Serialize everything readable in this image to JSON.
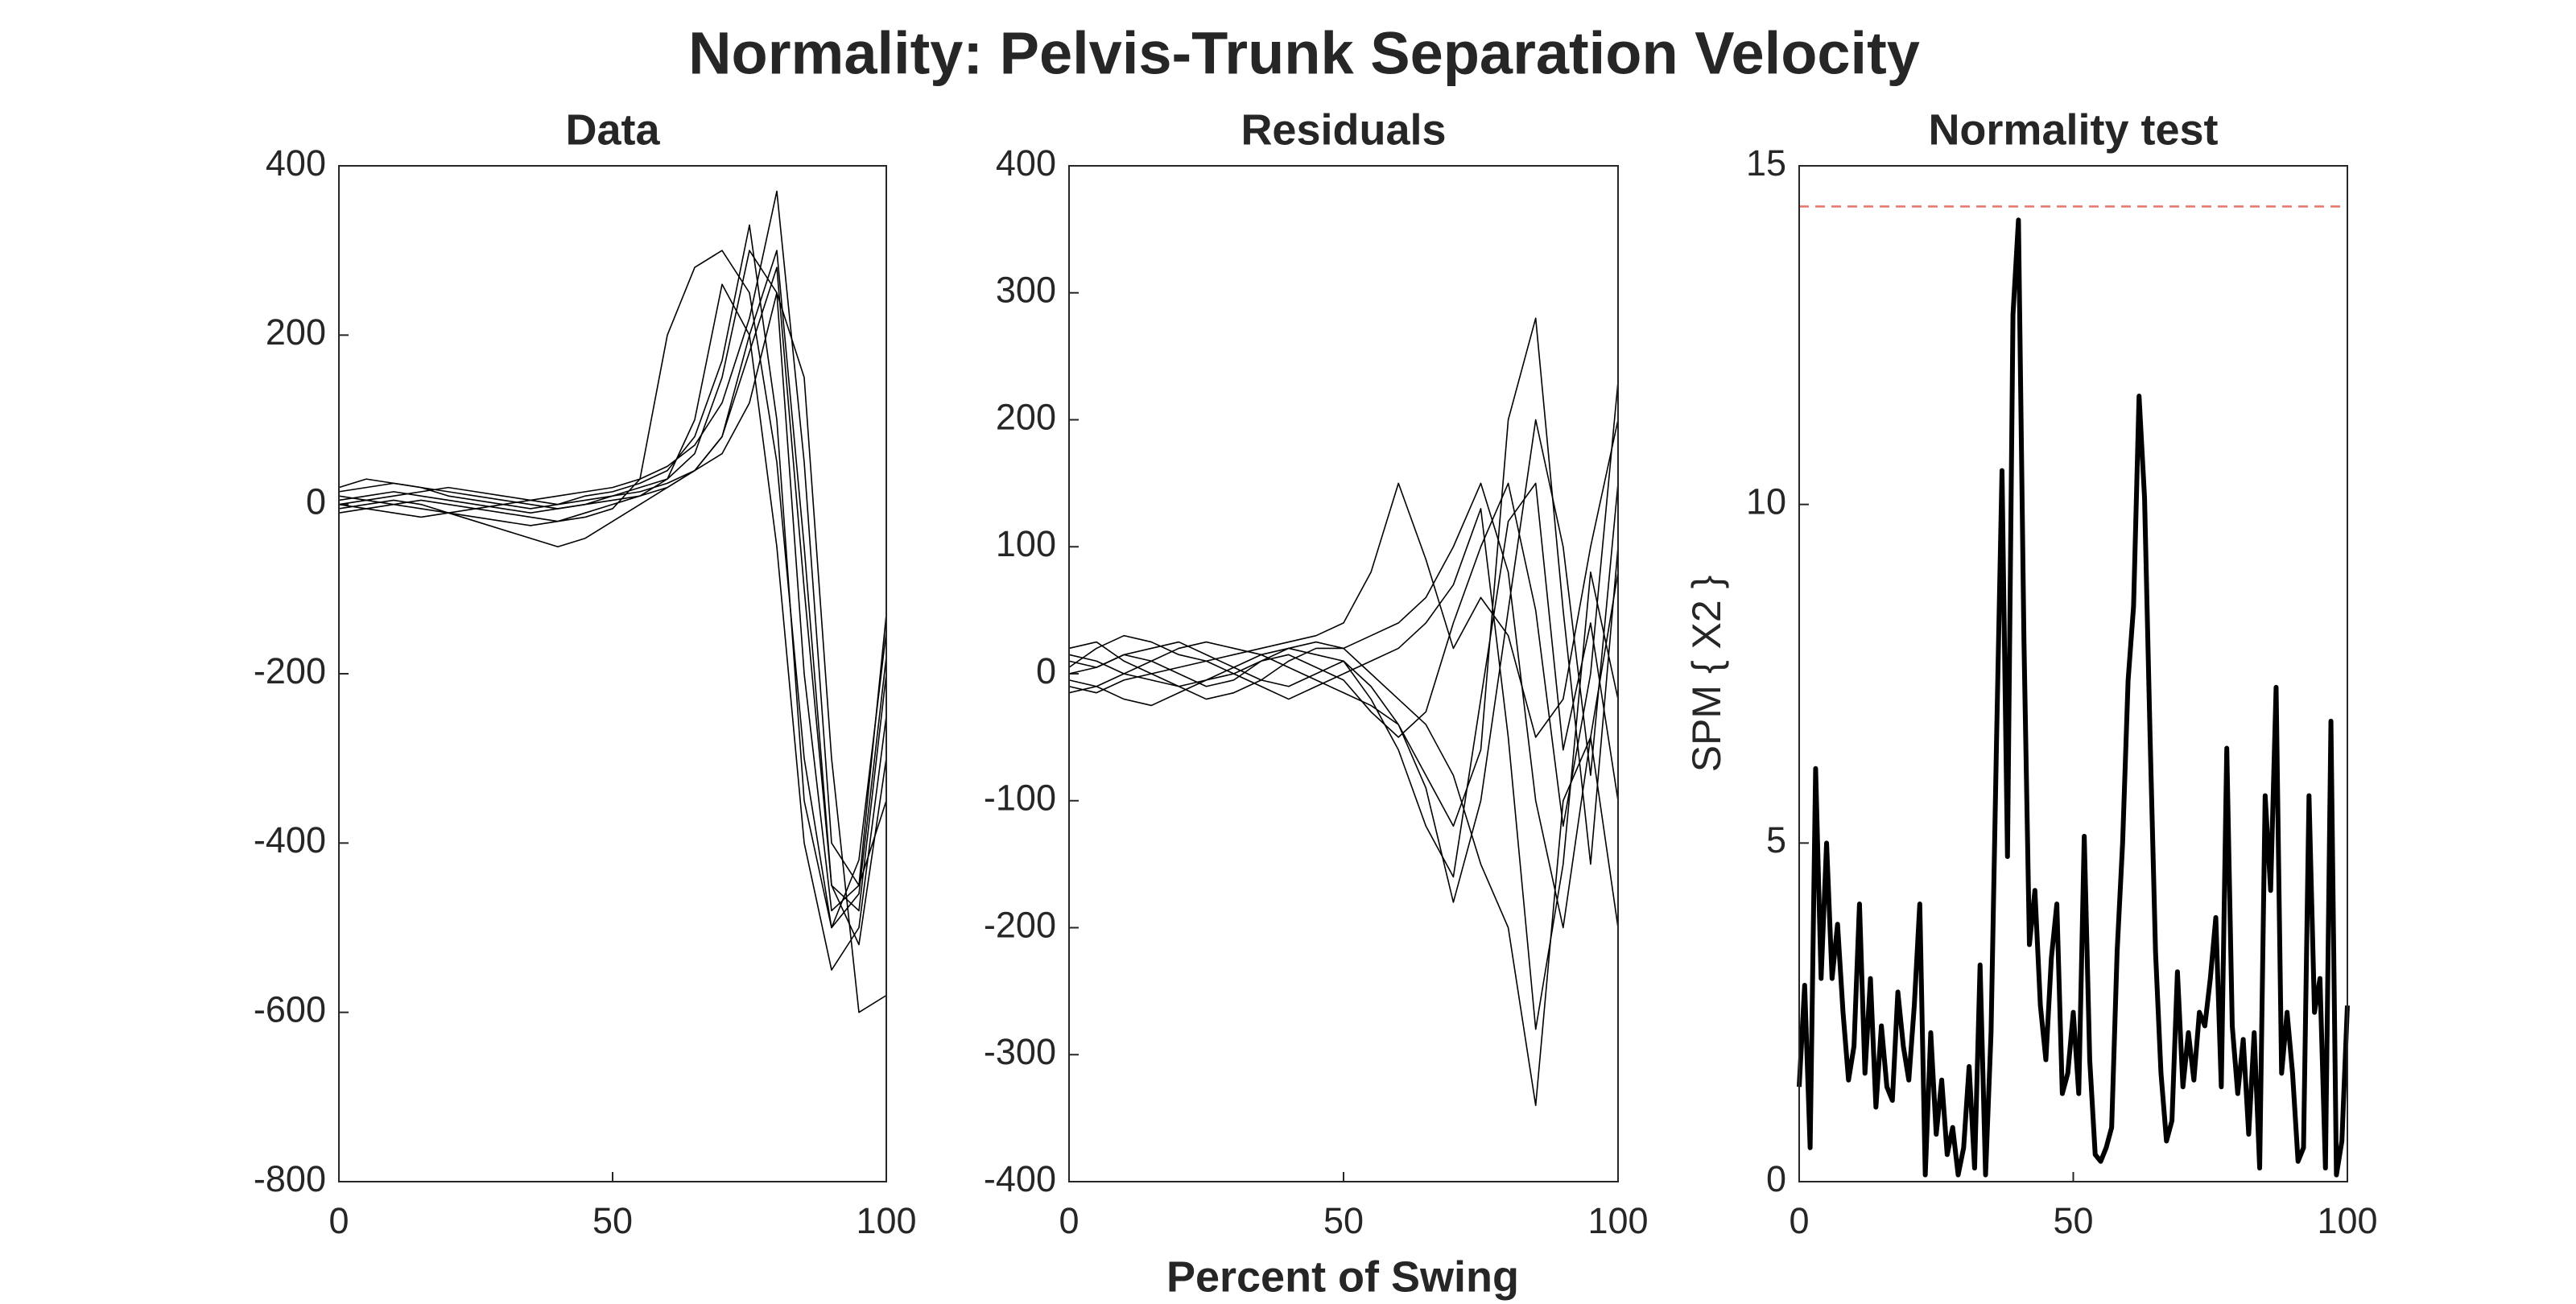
{
  "title": "Normality: Pelvis-Trunk Separation Velocity",
  "xlabel": "Percent of Swing",
  "chart_data": [
    {
      "type": "line",
      "title": "Data",
      "x": [
        0,
        5,
        10,
        15,
        20,
        25,
        30,
        35,
        40,
        45,
        50,
        55,
        60,
        65,
        70,
        75,
        80,
        85,
        90,
        95,
        100
      ],
      "series": [
        {
          "color": "#000000",
          "values": [
            5,
            10,
            15,
            10,
            5,
            0,
            -5,
            -10,
            -5,
            0,
            5,
            10,
            20,
            40,
            80,
            200,
            300,
            -50,
            -450,
            -480,
            -200
          ]
        },
        {
          "color": "#000000",
          "values": [
            -5,
            0,
            5,
            0,
            -10,
            -15,
            -20,
            -25,
            -20,
            -15,
            -5,
            30,
            200,
            280,
            300,
            250,
            50,
            -300,
            -500,
            -420,
            -150
          ]
        },
        {
          "color": "#000000",
          "values": [
            20,
            30,
            25,
            20,
            15,
            10,
            5,
            0,
            -5,
            0,
            10,
            15,
            25,
            40,
            60,
            120,
            250,
            150,
            -300,
            -600,
            -580
          ]
        },
        {
          "color": "#000000",
          "values": [
            0,
            5,
            0,
            -5,
            -10,
            -20,
            -30,
            -40,
            -50,
            -40,
            -20,
            0,
            20,
            40,
            80,
            180,
            280,
            -100,
            -450,
            -520,
            -300
          ]
        },
        {
          "color": "#000000",
          "values": [
            10,
            5,
            10,
            15,
            20,
            15,
            10,
            5,
            0,
            5,
            10,
            20,
            30,
            60,
            150,
            300,
            250,
            -200,
            -480,
            -450,
            -350
          ]
        },
        {
          "color": "#000000",
          "values": [
            -10,
            -5,
            0,
            5,
            0,
            -5,
            -10,
            -15,
            -20,
            -10,
            0,
            10,
            30,
            100,
            260,
            200,
            -50,
            -400,
            -550,
            -500,
            -250
          ]
        },
        {
          "color": "#000000",
          "values": [
            15,
            20,
            25,
            20,
            10,
            5,
            0,
            -5,
            0,
            10,
            15,
            25,
            40,
            80,
            170,
            330,
            100,
            -350,
            -500,
            -460,
            -180
          ]
        },
        {
          "color": "#000000",
          "values": [
            0,
            -5,
            -10,
            -15,
            -10,
            -5,
            0,
            5,
            10,
            15,
            20,
            30,
            45,
            70,
            120,
            220,
            370,
            50,
            -400,
            -450,
            -130
          ]
        }
      ],
      "xlim": [
        0,
        100
      ],
      "ylim": [
        -800,
        400
      ],
      "xticks": [
        0,
        50,
        100
      ],
      "yticks": [
        -800,
        -600,
        -400,
        -200,
        0,
        200,
        400
      ]
    },
    {
      "type": "line",
      "title": "Residuals",
      "x": [
        0,
        5,
        10,
        15,
        20,
        25,
        30,
        35,
        40,
        45,
        50,
        55,
        60,
        65,
        70,
        75,
        80,
        85,
        90,
        95,
        100
      ],
      "series": [
        {
          "color": "#000000",
          "values": [
            10,
            5,
            15,
            10,
            0,
            -10,
            -5,
            10,
            20,
            15,
            10,
            -20,
            -60,
            -120,
            -160,
            -20,
            120,
            150,
            -60,
            40,
            -100
          ]
        },
        {
          "color": "#000000",
          "values": [
            -10,
            -15,
            -5,
            0,
            5,
            10,
            15,
            20,
            25,
            30,
            40,
            80,
            150,
            90,
            20,
            60,
            30,
            -50,
            -20,
            100,
            200
          ]
        },
        {
          "color": "#000000",
          "values": [
            20,
            25,
            10,
            0,
            -10,
            -20,
            -15,
            -5,
            10,
            20,
            20,
            0,
            -20,
            -40,
            -80,
            -150,
            -200,
            -340,
            -100,
            -50,
            -200
          ]
        },
        {
          "color": "#000000",
          "values": [
            0,
            5,
            15,
            20,
            25,
            15,
            5,
            -5,
            -10,
            0,
            10,
            -10,
            -40,
            -80,
            -120,
            -60,
            200,
            280,
            50,
            -150,
            100
          ]
        },
        {
          "color": "#000000",
          "values": [
            -5,
            -10,
            -20,
            -25,
            -15,
            -5,
            5,
            15,
            20,
            25,
            20,
            30,
            40,
            60,
            100,
            150,
            80,
            -100,
            -200,
            -50,
            80
          ]
        },
        {
          "color": "#000000",
          "values": [
            15,
            10,
            0,
            -5,
            -10,
            -5,
            0,
            10,
            15,
            5,
            -5,
            -30,
            -50,
            -30,
            40,
            100,
            150,
            50,
            -120,
            0,
            230
          ]
        },
        {
          "color": "#000000",
          "values": [
            5,
            20,
            30,
            25,
            15,
            10,
            0,
            -10,
            -20,
            -10,
            0,
            10,
            20,
            40,
            70,
            130,
            -50,
            -280,
            -150,
            80,
            -20
          ]
        },
        {
          "color": "#000000",
          "values": [
            -15,
            -10,
            0,
            10,
            20,
            25,
            20,
            15,
            5,
            -5,
            -15,
            -25,
            -40,
            -90,
            -180,
            -100,
            50,
            200,
            100,
            -80,
            150
          ]
        }
      ],
      "xlim": [
        0,
        100
      ],
      "ylim": [
        -400,
        400
      ],
      "xticks": [
        0,
        50,
        100
      ],
      "yticks": [
        -400,
        -300,
        -200,
        -100,
        0,
        100,
        200,
        300,
        400
      ]
    },
    {
      "type": "line",
      "title": "Normality test",
      "ylabel": "SPM { X2 }",
      "x": [
        0,
        1,
        2,
        3,
        4,
        5,
        6,
        7,
        8,
        9,
        10,
        11,
        12,
        13,
        14,
        15,
        16,
        17,
        18,
        19,
        20,
        21,
        22,
        23,
        24,
        25,
        26,
        27,
        28,
        29,
        30,
        31,
        32,
        33,
        34,
        35,
        36,
        37,
        38,
        39,
        40,
        41,
        42,
        43,
        44,
        45,
        46,
        47,
        48,
        49,
        50,
        51,
        52,
        53,
        54,
        55,
        56,
        57,
        58,
        59,
        60,
        61,
        62,
        63,
        64,
        65,
        66,
        67,
        68,
        69,
        70,
        71,
        72,
        73,
        74,
        75,
        76,
        77,
        78,
        79,
        80,
        81,
        82,
        83,
        84,
        85,
        86,
        87,
        88,
        89,
        90,
        91,
        92,
        93,
        94,
        95,
        96,
        97,
        98,
        99,
        100
      ],
      "series": [
        {
          "color": "#000000",
          "values": [
            1.4,
            2.9,
            0.5,
            6.1,
            3,
            5,
            3,
            3.8,
            2.5,
            1.5,
            2,
            4.1,
            1.6,
            3,
            1.1,
            2.3,
            1.4,
            1.2,
            2.8,
            2,
            1.5,
            2.6,
            4.1,
            0.1,
            2.2,
            0.7,
            1.5,
            0.4,
            0.8,
            0.1,
            0.5,
            1.7,
            0.2,
            3.2,
            0.1,
            2.2,
            6.5,
            10.5,
            4.8,
            12.8,
            14.2,
            8,
            3.5,
            4.3,
            2.6,
            1.8,
            3.3,
            4.1,
            1.3,
            1.6,
            2.5,
            1.3,
            5.1,
            1.8,
            0.4,
            0.3,
            0.5,
            0.8,
            3.4,
            5,
            7.4,
            8.5,
            11.6,
            10.1,
            6.6,
            3.4,
            1.6,
            0.6,
            0.9,
            3.1,
            1.4,
            2.2,
            1.5,
            2.5,
            2.3,
            3,
            3.9,
            1.4,
            6.4,
            2.3,
            1.3,
            2.1,
            0.7,
            2.2,
            0.2,
            5.7,
            4.3,
            7.3,
            1.6,
            2.5,
            1.6,
            0.3,
            0.5,
            5.7,
            2.5,
            3,
            0.2,
            6.8,
            0.1,
            0.6,
            2.6
          ]
        }
      ],
      "threshold": {
        "value": 14.4,
        "color": "#e8736b"
      },
      "xlim": [
        0,
        100
      ],
      "ylim": [
        0,
        15
      ],
      "xticks": [
        0,
        50,
        100
      ],
      "yticks": [
        0,
        5,
        10,
        15
      ]
    }
  ]
}
